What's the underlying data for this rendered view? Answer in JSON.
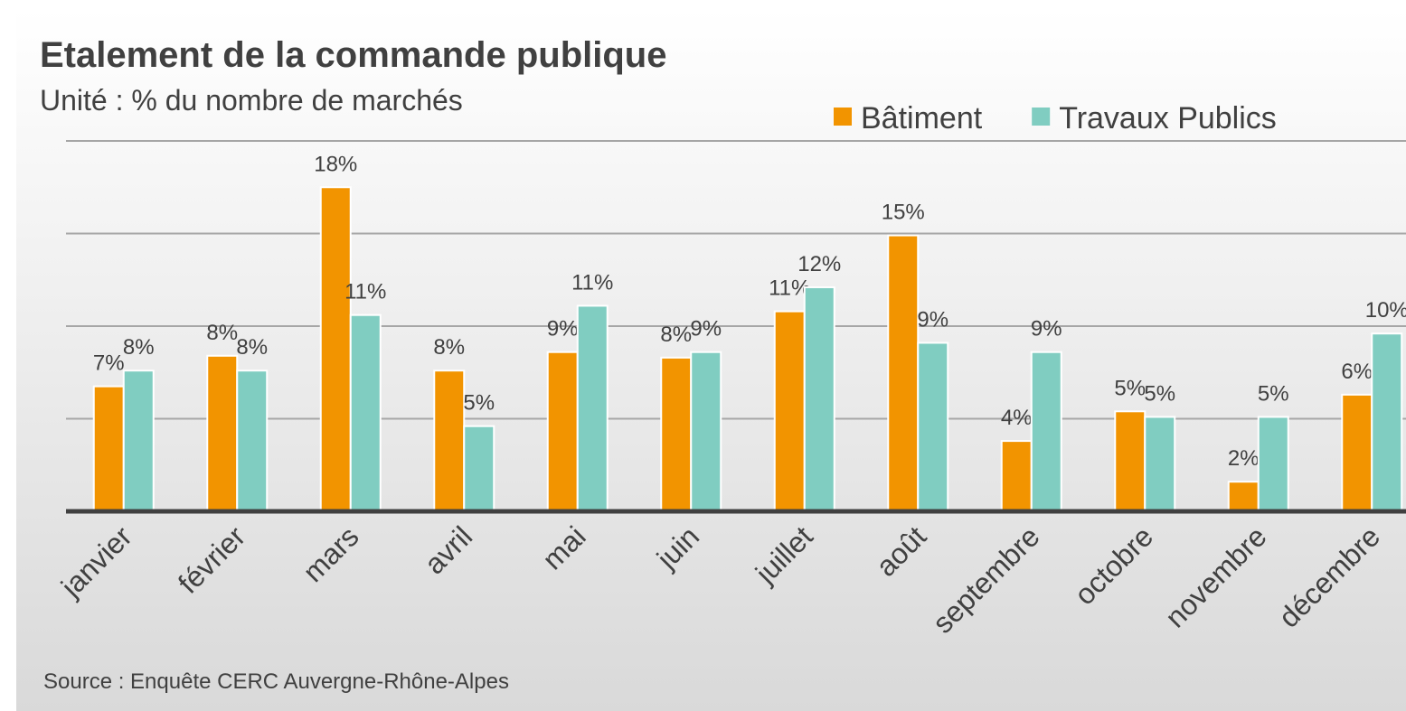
{
  "chart_data": {
    "type": "bar",
    "title": "Etalement de la commande publique",
    "subtitle": "Unité : % du nombre de marchés",
    "source": "Source : Enquête  CERC Auvergne-Rhône-Alpes",
    "categories": [
      "janvier",
      "février",
      "mars",
      "avril",
      "mai",
      "juin",
      "juillet",
      "août",
      "septembre",
      "octobre",
      "novembre",
      "décembre"
    ],
    "series": [
      {
        "name": "Bâtiment",
        "color": "#f29400",
        "values": [
          6.75,
          8.4,
          17.5,
          7.6,
          8.6,
          8.3,
          10.8,
          14.9,
          3.8,
          5.4,
          1.6,
          6.3
        ],
        "value_labels": [
          "7%",
          "8%",
          "18%",
          "8%",
          "9%",
          "8%",
          "11%",
          "15%",
          "4%",
          "5%",
          "2%",
          "6%"
        ]
      },
      {
        "name": "Travaux Publics",
        "color": "#80cdc1",
        "values": [
          7.6,
          7.6,
          10.6,
          4.6,
          11.1,
          8.6,
          12.1,
          9.1,
          8.6,
          5.1,
          5.1,
          9.6
        ],
        "value_labels": [
          "8%",
          "8%",
          "11%",
          "5%",
          "11%",
          "9%",
          "12%",
          "9%",
          "9%",
          "5%",
          "5%",
          "10%"
        ]
      }
    ],
    "ylim": [
      0,
      20
    ],
    "yticks": [
      0,
      5,
      10,
      15,
      20
    ],
    "grid": true,
    "legend": "top-right"
  }
}
